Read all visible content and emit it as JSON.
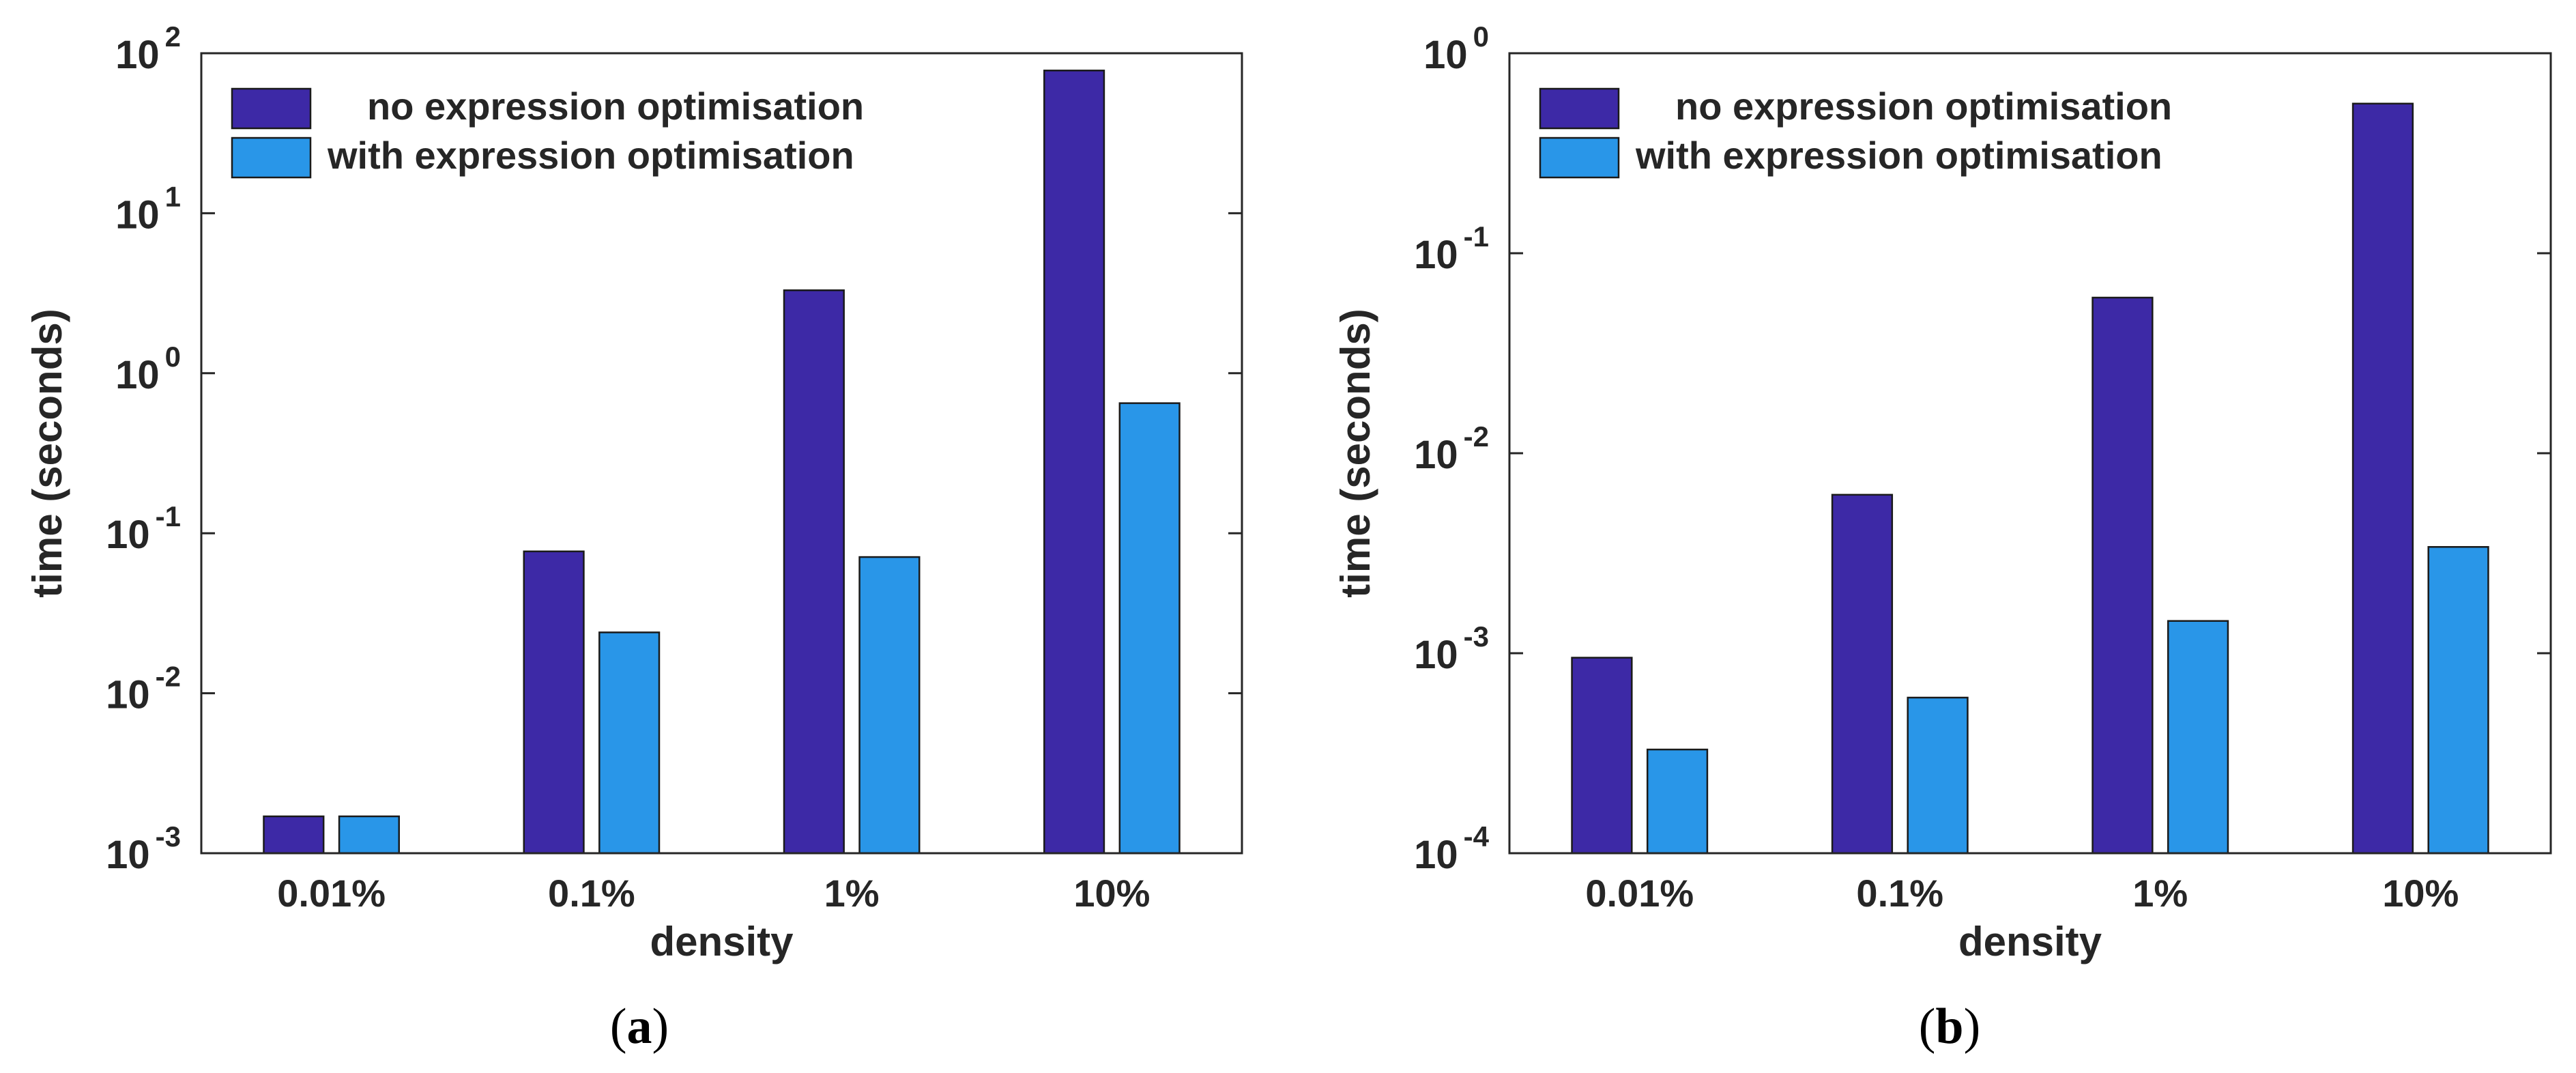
{
  "figure": {
    "colors": {
      "series_1": "#3d29a6",
      "series_2": "#2996e8"
    }
  },
  "chart_data": [
    {
      "type": "bar",
      "scale": "log",
      "caption": {
        "open": "(",
        "letter": "a",
        "close": ")"
      },
      "title": "",
      "xlabel": "density",
      "ylabel": "time (seconds)",
      "categories": [
        "0.01%",
        "0.1%",
        "1%",
        "10%"
      ],
      "ylim": [
        0.001,
        100
      ],
      "yticks": [
        {
          "base": "10",
          "exp": "-3",
          "value": 0.001
        },
        {
          "base": "10",
          "exp": "-2",
          "value": 0.01
        },
        {
          "base": "10",
          "exp": "-1",
          "value": 0.1
        },
        {
          "base": "10",
          "exp": "0",
          "value": 1
        },
        {
          "base": "10",
          "exp": "1",
          "value": 10
        },
        {
          "base": "10",
          "exp": "2",
          "value": 100
        }
      ],
      "legend": {
        "position": "top-left"
      },
      "series": [
        {
          "name": "no expression optimisation",
          "color": "#3d29a6",
          "values": [
            0.0017,
            0.077,
            3.3,
            78
          ]
        },
        {
          "name": "with expression optimisation",
          "color": "#2996e8",
          "values": [
            0.0017,
            0.024,
            0.071,
            0.65
          ]
        }
      ]
    },
    {
      "type": "bar",
      "scale": "log",
      "caption": {
        "open": "(",
        "letter": "b",
        "close": ")"
      },
      "title": "",
      "xlabel": "density",
      "ylabel": "time (seconds)",
      "categories": [
        "0.01%",
        "0.1%",
        "1%",
        "10%"
      ],
      "ylim": [
        0.0001,
        1
      ],
      "yticks": [
        {
          "base": "10",
          "exp": "-4",
          "value": 0.0001
        },
        {
          "base": "10",
          "exp": "-3",
          "value": 0.001
        },
        {
          "base": "10",
          "exp": "-2",
          "value": 0.01
        },
        {
          "base": "10",
          "exp": "-1",
          "value": 0.1
        },
        {
          "base": "10",
          "exp": "0",
          "value": 1
        }
      ],
      "legend": {
        "position": "top-left"
      },
      "series": [
        {
          "name": "no expression optimisation",
          "color": "#3d29a6",
          "values": [
            0.00095,
            0.0062,
            0.06,
            0.56
          ]
        },
        {
          "name": "with expression optimisation",
          "color": "#2996e8",
          "values": [
            0.00033,
            0.0006,
            0.00145,
            0.0034
          ]
        }
      ]
    }
  ]
}
